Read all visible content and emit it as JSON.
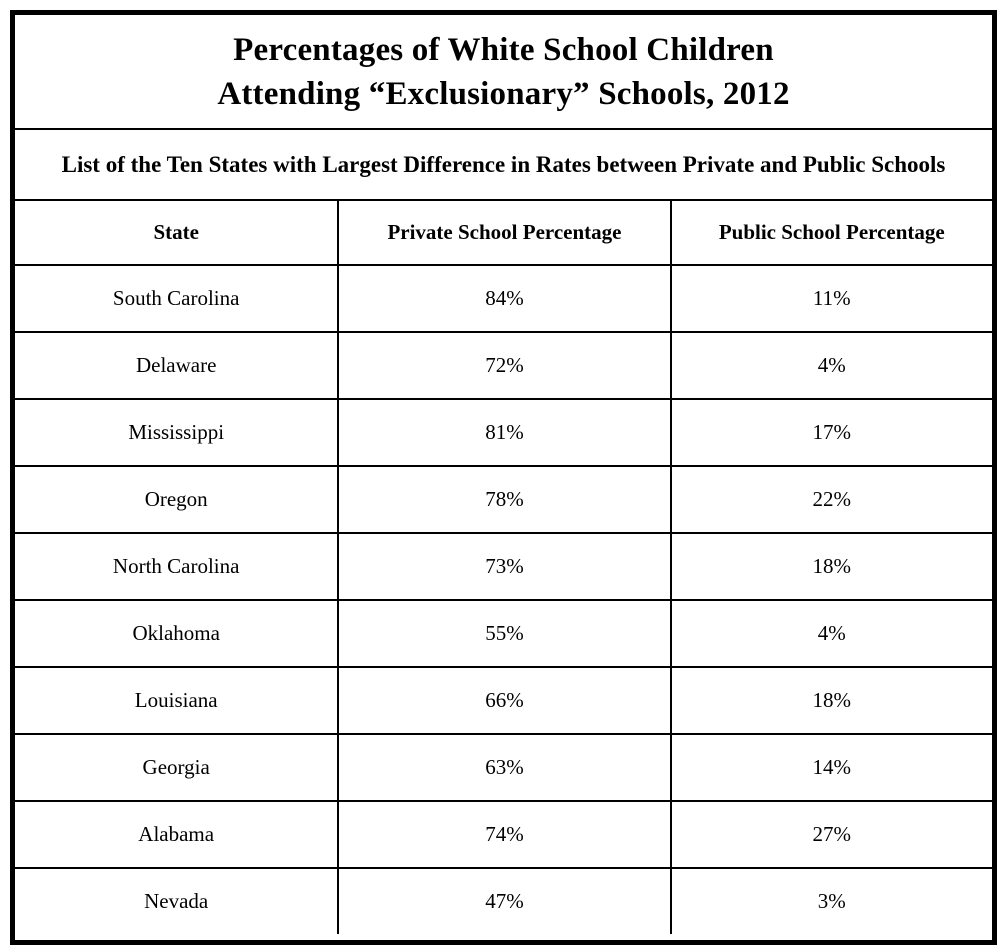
{
  "chart_data": {
    "type": "table",
    "title": "Percentages of White School Children Attending “Exclusionary” Schools, 2012",
    "title_lines": {
      "line1": "Percentages of White School Children",
      "line2": "Attending “Exclusionary” Schools, 2012"
    },
    "subtitle": "List of the Ten States with Largest Difference in Rates between Private and Public Schools",
    "columns": [
      "State",
      "Private School Percentage",
      "Public School Percentage"
    ],
    "rows": [
      {
        "state": "South Carolina",
        "private_pct": "84%",
        "public_pct": "11%"
      },
      {
        "state": "Delaware",
        "private_pct": "72%",
        "public_pct": "4%"
      },
      {
        "state": "Mississippi",
        "private_pct": "81%",
        "public_pct": "17%"
      },
      {
        "state": "Oregon",
        "private_pct": "78%",
        "public_pct": "22%"
      },
      {
        "state": "North Carolina",
        "private_pct": "73%",
        "public_pct": "18%"
      },
      {
        "state": "Oklahoma",
        "private_pct": "55%",
        "public_pct": "4%"
      },
      {
        "state": "Louisiana",
        "private_pct": "66%",
        "public_pct": "18%"
      },
      {
        "state": "Georgia",
        "private_pct": "63%",
        "public_pct": "14%"
      },
      {
        "state": "Alabama",
        "private_pct": "74%",
        "public_pct": "27%"
      },
      {
        "state": "Nevada",
        "private_pct": "47%",
        "public_pct": "3%"
      }
    ],
    "colors": {
      "border": "#000000",
      "background": "#ffffff",
      "text": "#000000"
    },
    "layout": {
      "grid": "on",
      "outer_border_px": 5,
      "inner_border_px": 2
    }
  }
}
